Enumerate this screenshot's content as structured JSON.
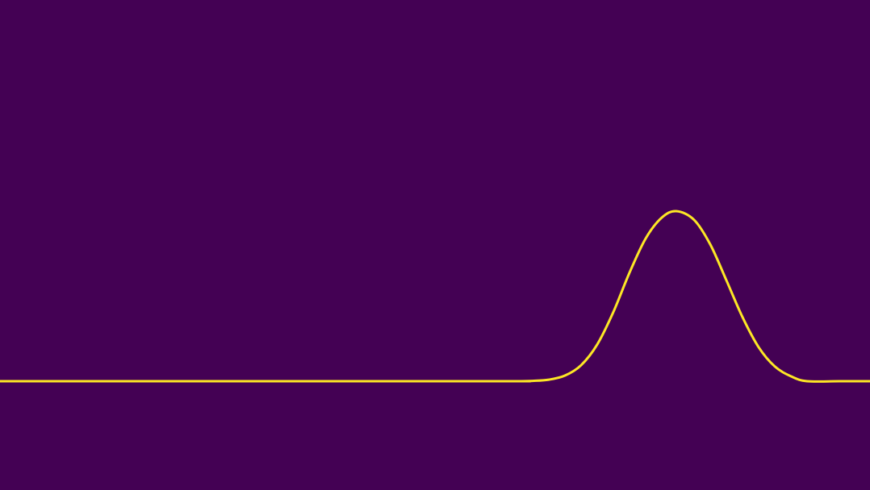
{
  "chart_data": {
    "type": "line",
    "title": "",
    "xlabel": "",
    "ylabel": "",
    "xlim": [
      0,
      1078
    ],
    "ylim": [
      -0.8,
      1.0
    ],
    "grid": false,
    "legend": "none",
    "background_color": "#440154",
    "series": [
      {
        "color": "#fde725",
        "x": [
          0,
          600,
          640,
          660,
          680,
          700,
          720,
          740,
          760,
          780,
          800,
          820,
          838,
          860,
          880,
          900,
          920,
          940,
          960,
          980,
          1000,
          1040,
          1078
        ],
        "y": [
          0.0,
          0.0,
          0.0,
          0.002,
          0.009,
          0.033,
          0.094,
          0.216,
          0.407,
          0.638,
          0.839,
          0.962,
          1.0,
          0.949,
          0.805,
          0.594,
          0.377,
          0.2,
          0.087,
          0.029,
          0.0,
          0.0,
          0.0
        ]
      }
    ]
  }
}
